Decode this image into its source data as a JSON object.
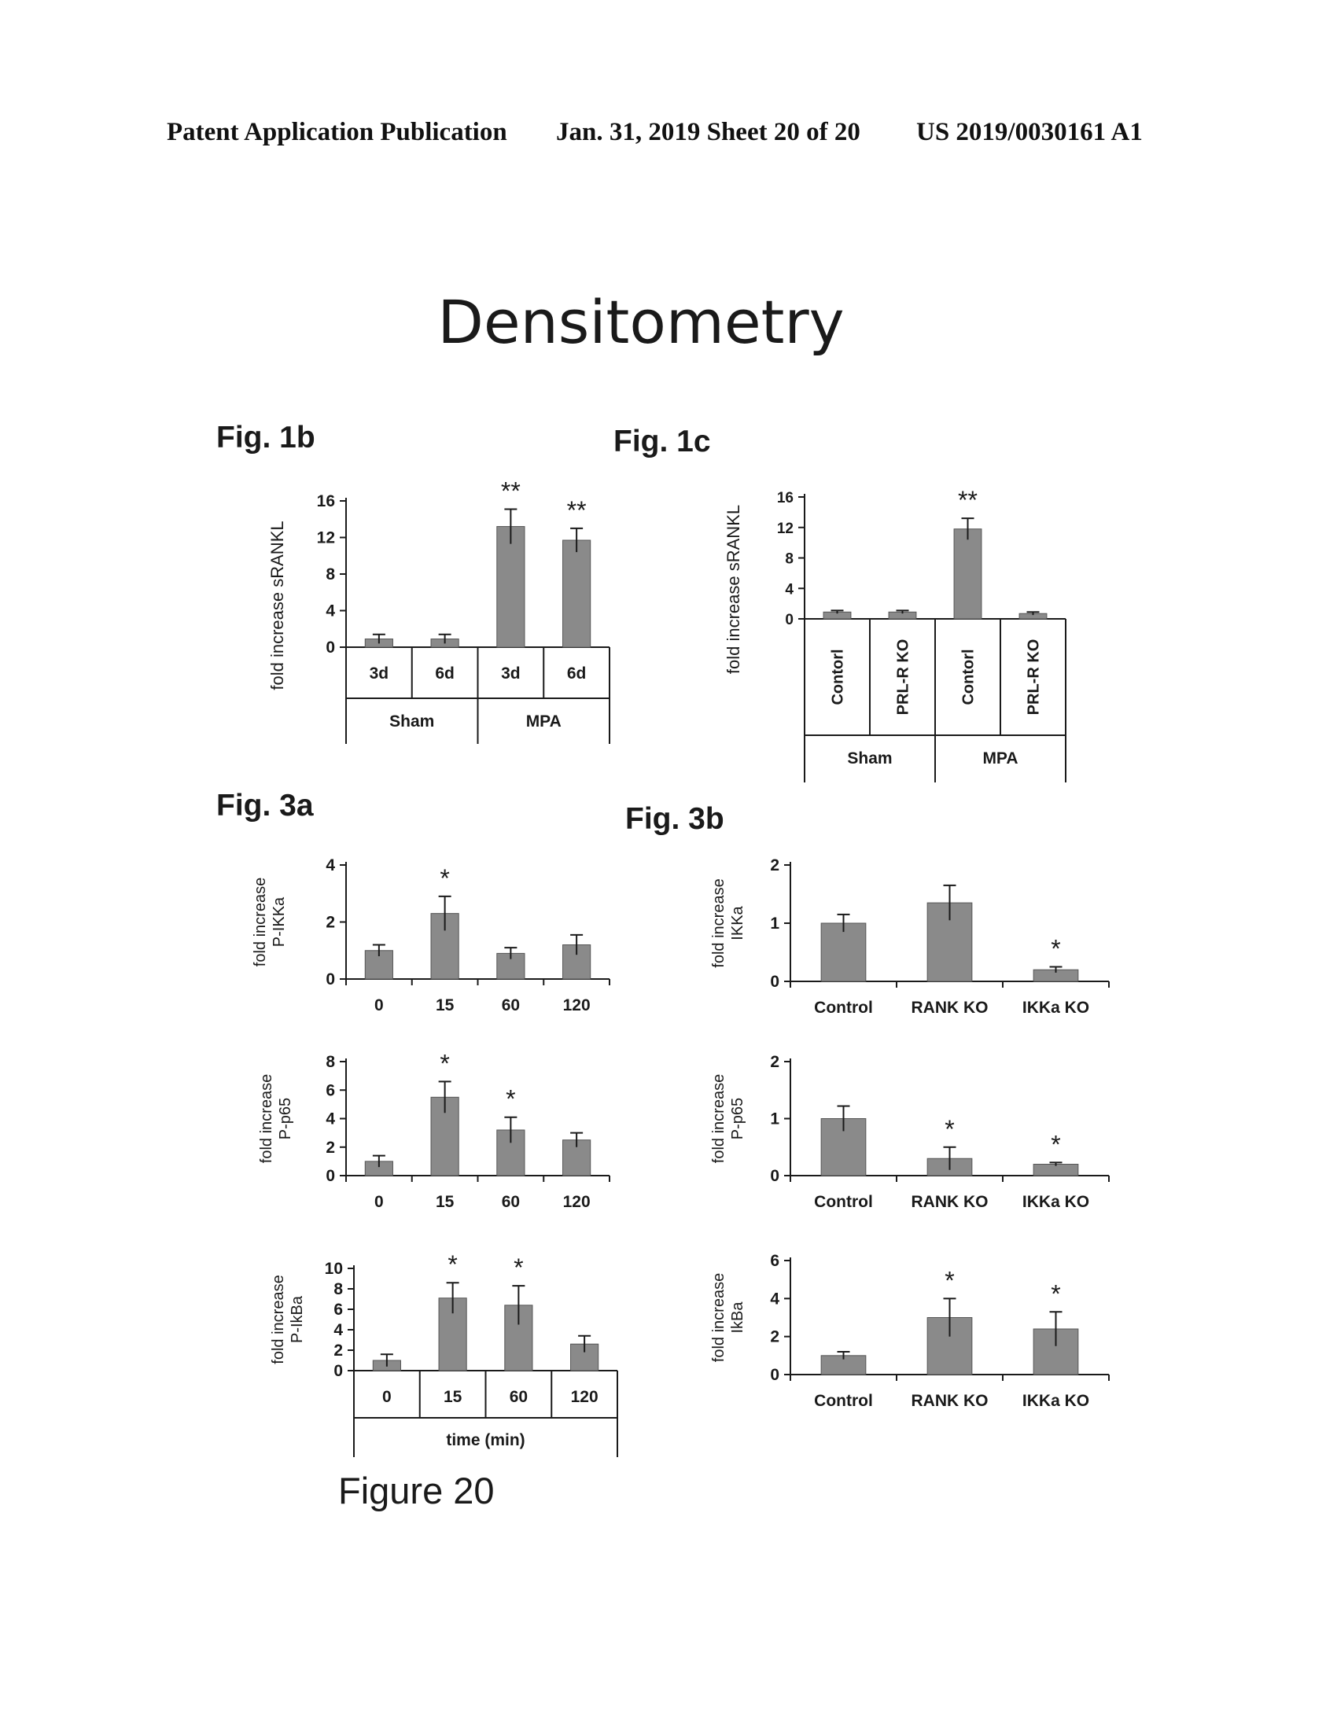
{
  "header": {
    "publication": "Patent Application Publication",
    "date_sheet": "Jan. 31, 2019  Sheet 20 of 20",
    "number": "US 2019/0030161 A1"
  },
  "title": "Densitometry",
  "figure_caption": "Figure 20",
  "fig_labels": {
    "fig1b": "Fig. 1b",
    "fig1c": "Fig. 1c",
    "fig3a": "Fig. 3a",
    "fig3b": "Fig. 3b"
  },
  "colors": {
    "bar": "#8a8a8a",
    "ink": "#1a1a1a"
  },
  "chart_data": [
    {
      "id": "fig1b",
      "type": "bar",
      "categories": [
        "3d",
        "6d",
        "3d",
        "6d"
      ],
      "groups": [
        {
          "label": "Sham",
          "span": 2
        },
        {
          "label": "MPA",
          "span": 2
        }
      ],
      "values": [
        0.9,
        0.9,
        13.2,
        11.7
      ],
      "errors": [
        0.5,
        0.5,
        1.9,
        1.3
      ],
      "annotations": [
        "",
        "",
        "**",
        "**"
      ],
      "ylabel": "fold increase sRANKL",
      "yticks": [
        0,
        4,
        8,
        12,
        16
      ],
      "ylim": [
        0,
        16
      ]
    },
    {
      "id": "fig1c",
      "type": "bar",
      "categories": [
        "Contorl",
        "PRL-R KO",
        "Contorl",
        "PRL-R KO"
      ],
      "groups": [
        {
          "label": "Sham",
          "span": 2
        },
        {
          "label": "MPA",
          "span": 2
        }
      ],
      "values": [
        0.9,
        0.9,
        11.8,
        0.7
      ],
      "errors": [
        0.2,
        0.2,
        1.4,
        0.2
      ],
      "annotations": [
        "",
        "",
        "**",
        ""
      ],
      "ylabel": "fold increase sRANKL",
      "yticks": [
        0,
        4,
        8,
        12,
        16
      ],
      "ylim": [
        0,
        16
      ]
    },
    {
      "id": "fig3a-1",
      "type": "bar",
      "categories": [
        "0",
        "15",
        "60",
        "120"
      ],
      "values": [
        1.0,
        2.3,
        0.9,
        1.2
      ],
      "errors": [
        0.2,
        0.6,
        0.2,
        0.35
      ],
      "annotations": [
        "",
        "*",
        "",
        ""
      ],
      "ylabel": [
        "fold increase",
        "P-IKKa"
      ],
      "yticks": [
        0,
        2,
        4
      ],
      "ylim": [
        0,
        4
      ]
    },
    {
      "id": "fig3a-2",
      "type": "bar",
      "categories": [
        "0",
        "15",
        "60",
        "120"
      ],
      "values": [
        1.0,
        5.5,
        3.2,
        2.5
      ],
      "errors": [
        0.4,
        1.1,
        0.9,
        0.5
      ],
      "annotations": [
        "",
        "*",
        "*",
        ""
      ],
      "ylabel": [
        "fold increase",
        "P-p65"
      ],
      "yticks": [
        0,
        2,
        4,
        6,
        8
      ],
      "ylim": [
        0,
        8
      ]
    },
    {
      "id": "fig3a-3",
      "type": "bar",
      "categories": [
        "0",
        "15",
        "60",
        "120"
      ],
      "values": [
        1.0,
        7.1,
        6.4,
        2.6
      ],
      "errors": [
        0.6,
        1.5,
        1.9,
        0.8
      ],
      "annotations": [
        "",
        "*",
        "*",
        ""
      ],
      "ylabel": [
        "fold increase",
        "P-IkBa"
      ],
      "yticks": [
        0,
        2,
        4,
        6,
        8,
        10
      ],
      "ylim": [
        0,
        10
      ],
      "xlabel": "time (min)"
    },
    {
      "id": "fig3b-1",
      "type": "bar",
      "categories": [
        "Control",
        "RANK KO",
        "IKKa KO"
      ],
      "values": [
        1.0,
        1.35,
        0.2
      ],
      "errors": [
        0.15,
        0.3,
        0.05
      ],
      "annotations": [
        "",
        "",
        "*"
      ],
      "ylabel": [
        "fold increase",
        "IKKa"
      ],
      "yticks": [
        0,
        1,
        2
      ],
      "ylim": [
        0,
        2
      ]
    },
    {
      "id": "fig3b-2",
      "type": "bar",
      "categories": [
        "Control",
        "RANK KO",
        "IKKa KO"
      ],
      "values": [
        1.0,
        0.3,
        0.2
      ],
      "errors": [
        0.22,
        0.2,
        0.03
      ],
      "annotations": [
        "",
        "*",
        "*"
      ],
      "ylabel": [
        "fold increase",
        "P-p65"
      ],
      "yticks": [
        0,
        1,
        2
      ],
      "ylim": [
        0,
        2
      ]
    },
    {
      "id": "fig3b-3",
      "type": "bar",
      "categories": [
        "Control",
        "RANK KO",
        "IKKa KO"
      ],
      "values": [
        1.0,
        3.0,
        2.4
      ],
      "errors": [
        0.2,
        1.0,
        0.9
      ],
      "annotations": [
        "",
        "*",
        "*"
      ],
      "ylabel": [
        "fold increase",
        "IkBa"
      ],
      "yticks": [
        0,
        2,
        4,
        6
      ],
      "ylim": [
        0,
        6
      ]
    }
  ]
}
